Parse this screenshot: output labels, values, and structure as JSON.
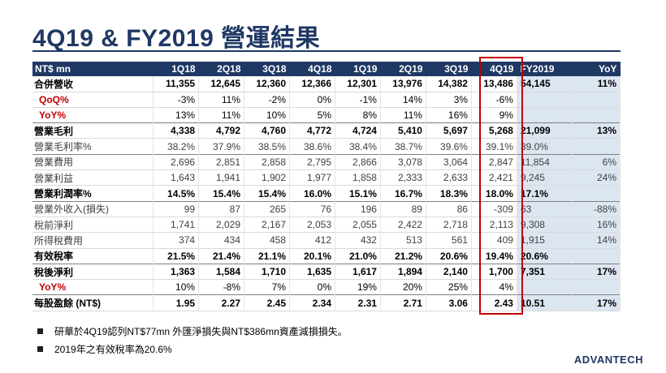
{
  "title": "4Q19 & FY2019 營運結果",
  "table": {
    "headers": [
      "NT$ mn",
      "1Q18",
      "2Q18",
      "3Q18",
      "4Q18",
      "1Q19",
      "2Q19",
      "3Q19",
      "4Q19",
      "FY2019",
      "YoY"
    ],
    "rows": [
      {
        "label": "合併營收",
        "values": [
          "11,355",
          "12,645",
          "12,360",
          "12,366",
          "12,301",
          "13,976",
          "14,382",
          "13,486",
          "54,145",
          "11%"
        ]
      },
      {
        "label": "QoQ%",
        "values": [
          "-3%",
          "11%",
          "-2%",
          "0%",
          "-1%",
          "14%",
          "3%",
          "-6%",
          "",
          ""
        ]
      },
      {
        "label": "YoY%",
        "values": [
          "13%",
          "11%",
          "10%",
          "5%",
          "8%",
          "11%",
          "16%",
          "9%",
          "",
          ""
        ]
      },
      {
        "label": "營業毛利",
        "values": [
          "4,338",
          "4,792",
          "4,760",
          "4,772",
          "4,724",
          "5,410",
          "5,697",
          "5,268",
          "21,099",
          "13%"
        ]
      },
      {
        "label": "營業毛利率%",
        "values": [
          "38.2%",
          "37.9%",
          "38.5%",
          "38.6%",
          "38.4%",
          "38.7%",
          "39.6%",
          "39.1%",
          "39.0%",
          ""
        ]
      },
      {
        "label": "營業費用",
        "values": [
          "2,696",
          "2,851",
          "2,858",
          "2,795",
          "2,866",
          "3,078",
          "3,064",
          "2,847",
          "11,854",
          "6%"
        ]
      },
      {
        "label": "營業利益",
        "values": [
          "1,643",
          "1,941",
          "1,902",
          "1,977",
          "1,858",
          "2,333",
          "2,633",
          "2,421",
          "9,245",
          "24%"
        ]
      },
      {
        "label": "營業利潤率%",
        "values": [
          "14.5%",
          "15.4%",
          "15.4%",
          "16.0%",
          "15.1%",
          "16.7%",
          "18.3%",
          "18.0%",
          "17.1%",
          ""
        ]
      },
      {
        "label": "營業外收入(損失)",
        "values": [
          "99",
          "87",
          "265",
          "76",
          "196",
          "89",
          "86",
          "-309",
          "63",
          "-88%"
        ]
      },
      {
        "label": "稅前淨利",
        "values": [
          "1,741",
          "2,029",
          "2,167",
          "2,053",
          "2,055",
          "2,422",
          "2,718",
          "2,113",
          "9,308",
          "16%"
        ]
      },
      {
        "label": "所得稅費用",
        "values": [
          "374",
          "434",
          "458",
          "412",
          "432",
          "513",
          "561",
          "409",
          "1,915",
          "14%"
        ]
      },
      {
        "label": "有效稅率",
        "values": [
          "21.5%",
          "21.4%",
          "21.1%",
          "20.1%",
          "21.0%",
          "21.2%",
          "20.6%",
          "19.4%",
          "20.6%",
          ""
        ]
      },
      {
        "label": "稅後淨利",
        "values": [
          "1,363",
          "1,584",
          "1,710",
          "1,635",
          "1,617",
          "1,894",
          "2,140",
          "1,700",
          "7,351",
          "17%"
        ]
      },
      {
        "label": "YoY%",
        "values": [
          "10%",
          "-8%",
          "7%",
          "0%",
          "19%",
          "20%",
          "25%",
          "4%",
          "",
          ""
        ]
      },
      {
        "label": "每股盈餘 (NT$)",
        "values": [
          "1.95",
          "2.27",
          "2.45",
          "2.34",
          "2.31",
          "2.71",
          "3.06",
          "2.43",
          "10.51",
          "17%"
        ]
      }
    ]
  },
  "notes": [
    "研華於4Q19認列NT$77mn 外匯淨損失與NT$386mn資產減損損失。",
    "2019年之有效稅率為20.6%"
  ],
  "logo": "ADVANTECH",
  "colors": {
    "header_bg": "#1f3864",
    "highlight_border": "#c00000",
    "fy_col_bg": "#dce6f1",
    "pct_label": "#c00000"
  }
}
